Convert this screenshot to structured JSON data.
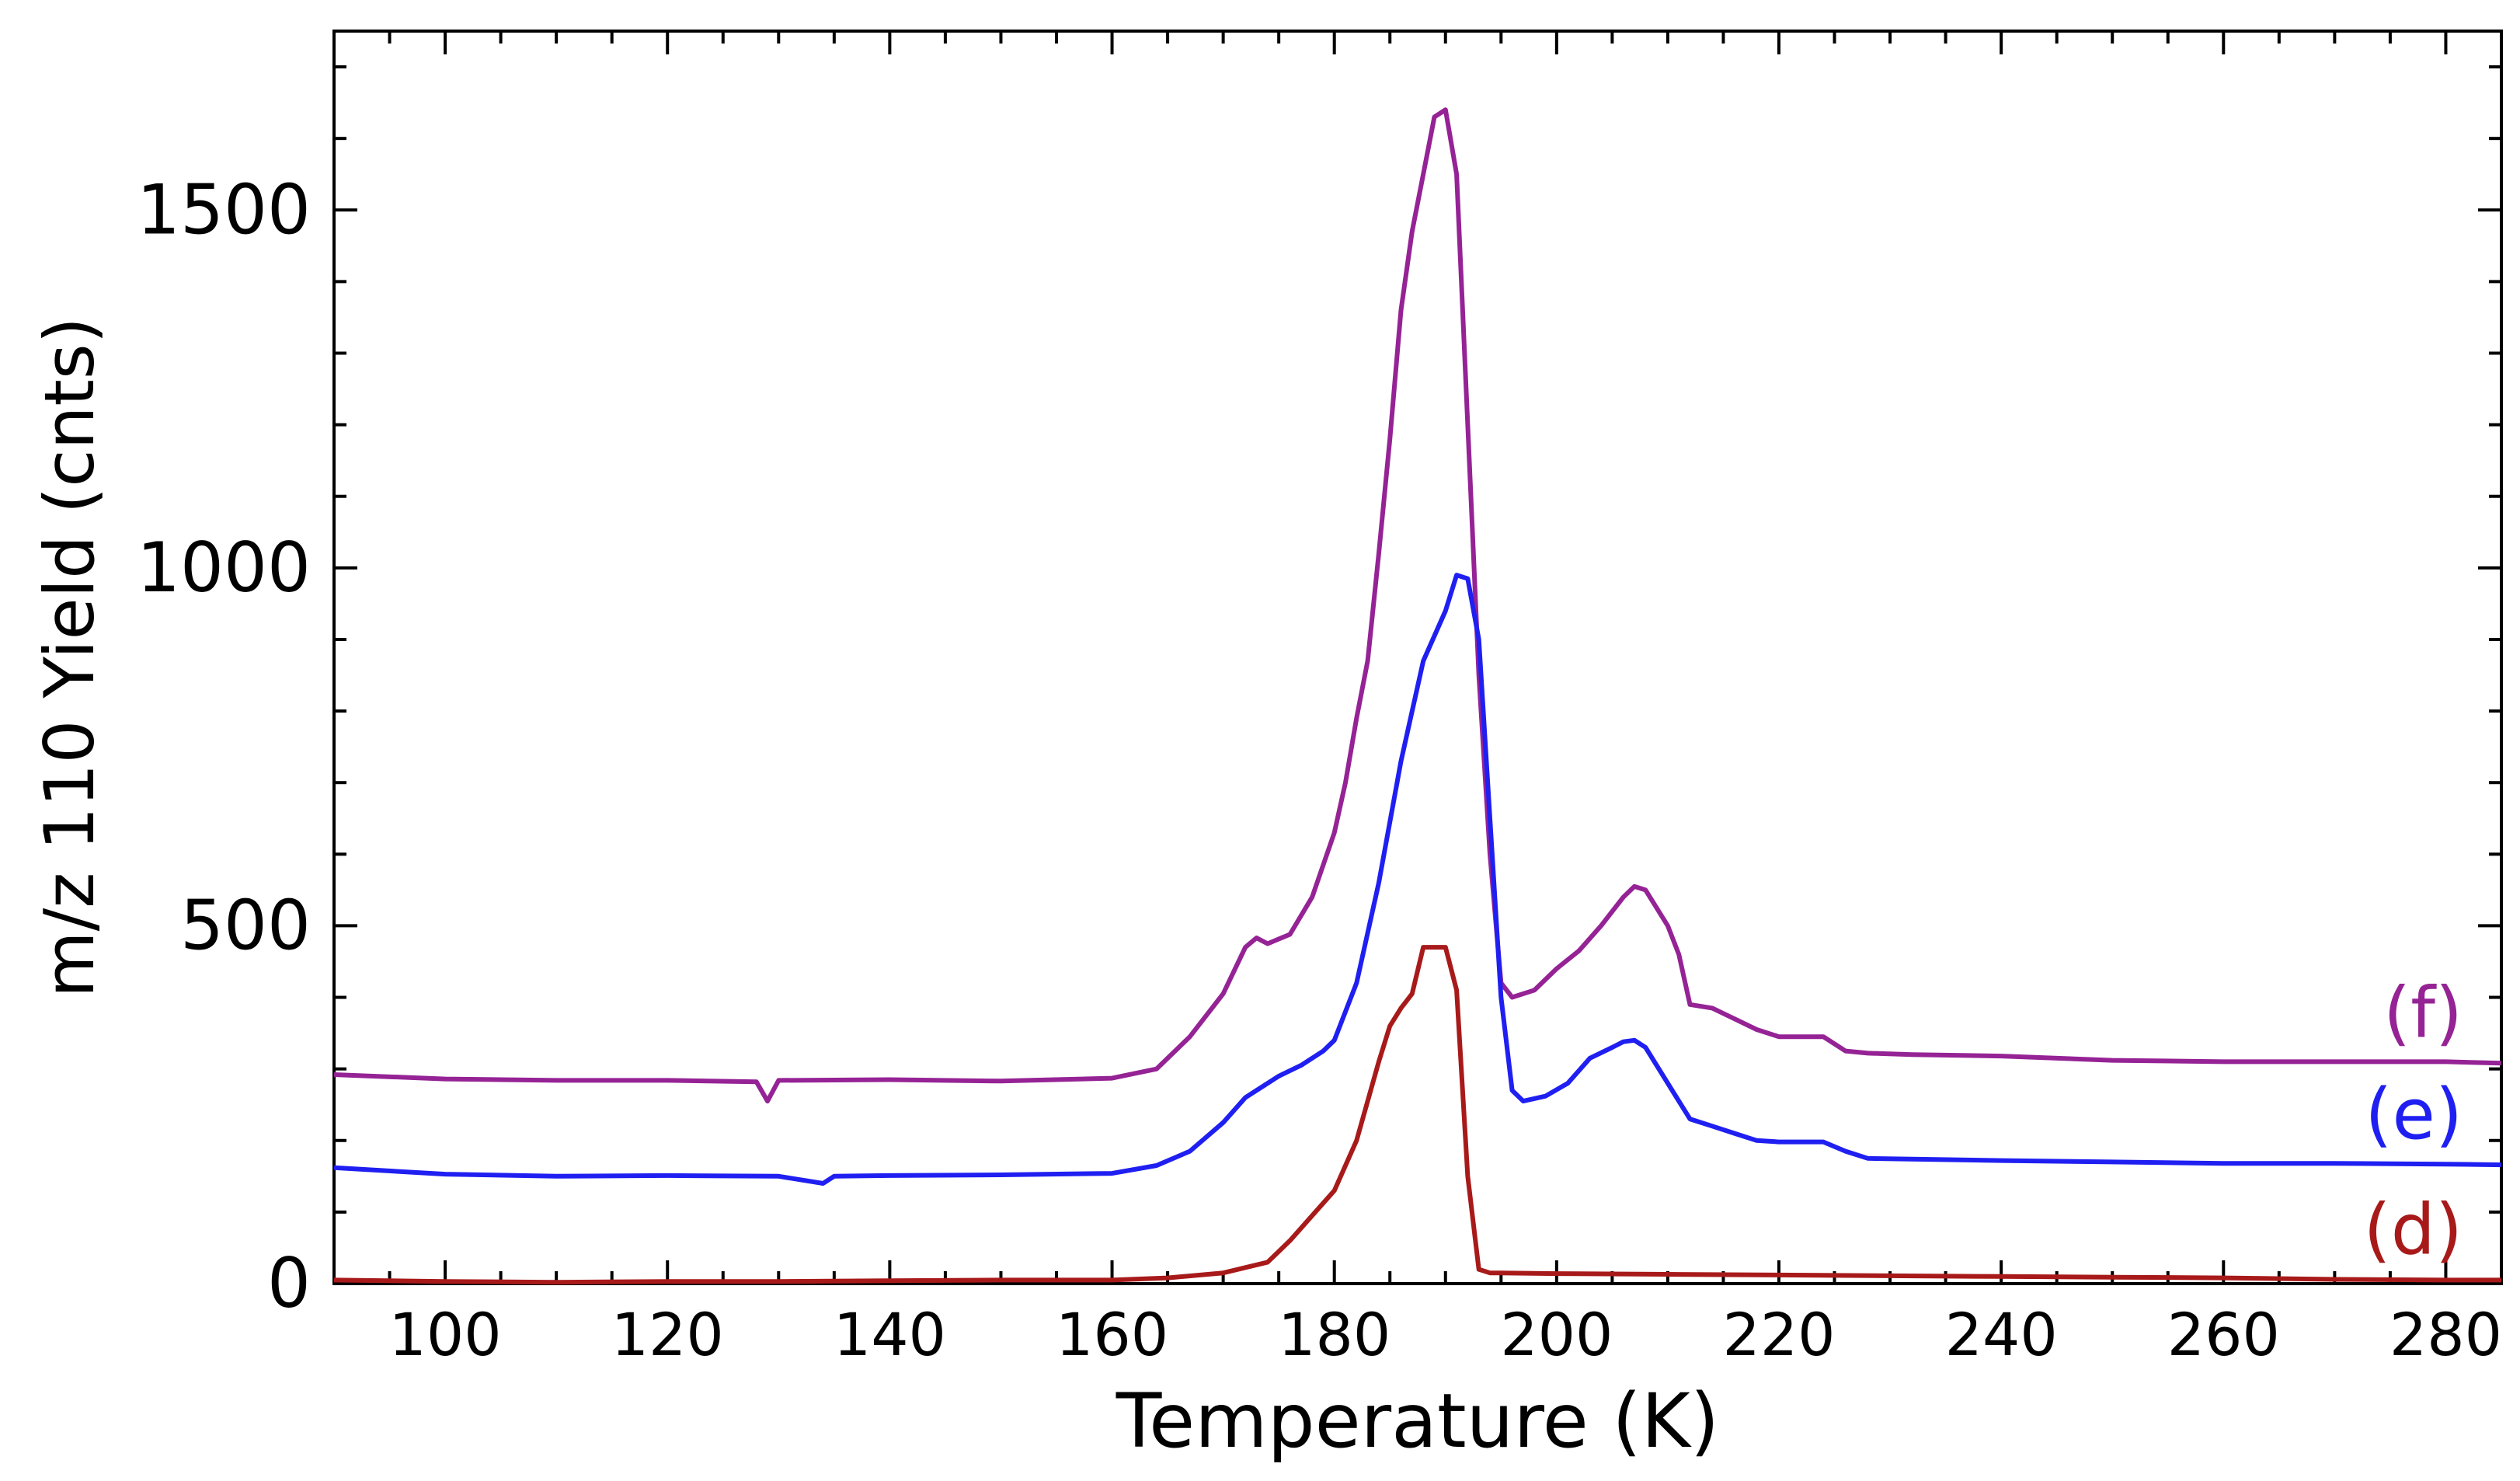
{
  "chart_data": {
    "type": "line",
    "title": "",
    "xlabel": "Temperature (K)",
    "ylabel": "m/z 110 Yield (cnts)",
    "xlim": [
      90,
      285
    ],
    "ylim": [
      0,
      1750
    ],
    "x_ticks": [
      100,
      120,
      140,
      160,
      180,
      200,
      220,
      240,
      260,
      280
    ],
    "x_minor_step": 5,
    "y_ticks": [
      0,
      500,
      1000,
      1500
    ],
    "y_minor_step": 100,
    "grid": false,
    "series": [
      {
        "label": "(f)",
        "color": "#952395",
        "x": [
          90,
          100,
          110,
          120,
          128,
          129,
          130,
          140,
          150,
          160,
          164,
          167,
          170,
          172,
          173,
          174,
          176,
          178,
          180,
          181,
          182,
          183,
          184,
          185,
          186,
          187,
          188,
          189,
          190,
          191,
          192,
          193,
          194,
          195,
          196,
          198,
          200,
          202,
          204,
          206,
          207,
          208,
          210,
          211,
          212,
          214,
          216,
          218,
          220,
          224,
          226,
          228,
          232,
          240,
          250,
          260,
          270,
          280,
          285
        ],
        "y": [
          292,
          286,
          284,
          284,
          282,
          255,
          284,
          285,
          283,
          287,
          300,
          345,
          405,
          470,
          483,
          475,
          488,
          540,
          630,
          700,
          790,
          870,
          1020,
          1180,
          1360,
          1470,
          1550,
          1630,
          1640,
          1550,
          1200,
          850,
          600,
          420,
          400,
          410,
          440,
          465,
          500,
          540,
          555,
          550,
          500,
          460,
          390,
          385,
          370,
          355,
          345,
          345,
          325,
          322,
          320,
          318,
          312,
          310,
          310,
          310,
          308
        ]
      },
      {
        "label": "(e)",
        "color": "#1f1ff2",
        "x": [
          90,
          100,
          110,
          120,
          130,
          134,
          135,
          140,
          150,
          160,
          164,
          167,
          170,
          172,
          173,
          175,
          177,
          179,
          180,
          182,
          184,
          186,
          188,
          190,
          191,
          192,
          193,
          194,
          195,
          196,
          197,
          199,
          201,
          203,
          205,
          206,
          207,
          208,
          210,
          212,
          214,
          216,
          218,
          220,
          224,
          226,
          228,
          240,
          250,
          260,
          270,
          280,
          285
        ],
        "y": [
          162,
          153,
          150,
          151,
          150,
          140,
          150,
          151,
          152,
          154,
          165,
          185,
          225,
          260,
          270,
          290,
          305,
          325,
          340,
          420,
          560,
          730,
          870,
          940,
          990,
          985,
          900,
          650,
          400,
          270,
          255,
          262,
          280,
          315,
          330,
          338,
          340,
          330,
          280,
          230,
          220,
          210,
          200,
          198,
          198,
          185,
          175,
          172,
          170,
          168,
          168,
          167,
          166
        ]
      },
      {
        "label": "(d)",
        "color": "#a81a1a",
        "x": [
          90,
          100,
          110,
          120,
          130,
          140,
          150,
          160,
          165,
          170,
          174,
          176,
          178,
          180,
          182,
          184,
          185,
          186,
          187,
          188,
          189,
          190,
          191,
          192,
          193,
          194,
          195,
          200,
          210,
          220,
          230,
          240,
          250,
          260,
          270,
          280,
          285
        ],
        "y": [
          5,
          3,
          2,
          3,
          3,
          4,
          5,
          5,
          8,
          15,
          30,
          60,
          95,
          130,
          200,
          310,
          360,
          385,
          405,
          470,
          470,
          470,
          410,
          150,
          20,
          15,
          15,
          14,
          13,
          12,
          11,
          10,
          9,
          8,
          6,
          5,
          5
        ]
      }
    ]
  }
}
